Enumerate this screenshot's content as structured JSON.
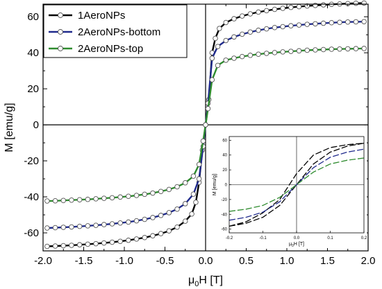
{
  "chart_data": [
    {
      "type": "line",
      "title": "",
      "xlabel": "μ0H [T]",
      "xlabel_parts": {
        "base": "μ",
        "sub": "0",
        "rest": "H [T]"
      },
      "ylabel": "M [emu/g]",
      "xlim": [
        -2.0,
        2.0
      ],
      "ylim": [
        -70,
        67
      ],
      "x_ticks": [
        -2.0,
        -1.5,
        -1.0,
        -0.5,
        0.0,
        0.5,
        1.0,
        1.5,
        2.0
      ],
      "x_tick_labels": [
        "-2.0",
        "-1.5",
        "-1.0",
        "-0.5",
        "0.0",
        "0.5",
        "1.0",
        "1.5",
        "2.0"
      ],
      "y_ticks": [
        -60,
        -40,
        -20,
        0,
        20,
        40,
        60
      ],
      "y_tick_labels": [
        "-60",
        "-40",
        "-20",
        "0",
        "20",
        "40",
        "60"
      ],
      "zero_lines": true,
      "legend_position": "top-left",
      "series": [
        {
          "name": "1AeroNPs",
          "color": "#000000",
          "marker": "open-circle",
          "x": [
            -1.95,
            -1.85,
            -1.75,
            -1.65,
            -1.55,
            -1.45,
            -1.35,
            -1.25,
            -1.15,
            -1.05,
            -0.95,
            -0.85,
            -0.75,
            -0.65,
            -0.55,
            -0.45,
            -0.35,
            -0.25,
            -0.17,
            -0.12,
            -0.08,
            -0.04,
            0.0,
            0.04,
            0.08,
            0.12,
            0.17,
            0.25,
            0.35,
            0.45,
            0.55,
            0.65,
            0.75,
            0.85,
            0.95,
            1.05,
            1.15,
            1.25,
            1.35,
            1.45,
            1.55,
            1.65,
            1.75,
            1.85,
            1.95
          ],
          "y": [
            -67.5,
            -67.3,
            -67.1,
            -66.9,
            -66.6,
            -66.3,
            -66.0,
            -65.6,
            -65.2,
            -64.7,
            -64.1,
            -63.4,
            -62.6,
            -61.6,
            -60.4,
            -58.9,
            -56.8,
            -53.5,
            -49.5,
            -43.0,
            -32.0,
            -14.0,
            0.0,
            14.0,
            40.0,
            48.0,
            53.5,
            56.8,
            58.9,
            60.4,
            61.6,
            62.6,
            63.4,
            64.1,
            64.7,
            65.2,
            65.6,
            66.0,
            66.3,
            66.6,
            66.9,
            67.1,
            67.3,
            67.5,
            67.6
          ]
        },
        {
          "name": "2AeroNPs-bottom",
          "color": "#1f2a8c",
          "marker": "open-circle",
          "x": [
            -1.95,
            -1.85,
            -1.75,
            -1.65,
            -1.55,
            -1.45,
            -1.35,
            -1.25,
            -1.15,
            -1.05,
            -0.95,
            -0.85,
            -0.75,
            -0.65,
            -0.55,
            -0.45,
            -0.35,
            -0.25,
            -0.15,
            -0.08,
            -0.03,
            0.0,
            0.03,
            0.08,
            0.15,
            0.25,
            0.35,
            0.45,
            0.55,
            0.65,
            0.75,
            0.85,
            0.95,
            1.05,
            1.15,
            1.25,
            1.35,
            1.45,
            1.55,
            1.65,
            1.75,
            1.85,
            1.95
          ],
          "y": [
            -57.3,
            -57.1,
            -56.9,
            -56.7,
            -56.4,
            -56.1,
            -55.8,
            -55.4,
            -55.0,
            -54.5,
            -54.0,
            -53.3,
            -52.5,
            -51.5,
            -50.3,
            -48.8,
            -46.8,
            -43.8,
            -38.5,
            -30.0,
            -12.0,
            0.0,
            12.0,
            37.0,
            43.5,
            46.8,
            48.8,
            50.3,
            51.5,
            52.5,
            53.3,
            54.0,
            54.5,
            55.0,
            55.4,
            55.8,
            56.1,
            56.4,
            56.7,
            56.9,
            57.1,
            57.2,
            57.3
          ]
        },
        {
          "name": "2AeroNPs-top",
          "color": "#2e8b2e",
          "marker": "open-circle",
          "x": [
            -1.95,
            -1.85,
            -1.75,
            -1.65,
            -1.55,
            -1.45,
            -1.35,
            -1.25,
            -1.15,
            -1.05,
            -0.95,
            -0.85,
            -0.75,
            -0.65,
            -0.55,
            -0.45,
            -0.35,
            -0.25,
            -0.15,
            -0.08,
            -0.03,
            0.0,
            0.03,
            0.08,
            0.15,
            0.25,
            0.35,
            0.45,
            0.55,
            0.65,
            0.75,
            0.85,
            0.95,
            1.05,
            1.15,
            1.25,
            1.35,
            1.45,
            1.55,
            1.65,
            1.75,
            1.85,
            1.95
          ],
          "y": [
            -42.3,
            -42.2,
            -42.0,
            -41.8,
            -41.6,
            -41.4,
            -41.1,
            -40.8,
            -40.5,
            -40.1,
            -39.7,
            -39.2,
            -38.6,
            -37.9,
            -37.0,
            -35.9,
            -34.4,
            -32.2,
            -28.5,
            -22.0,
            -9.0,
            0.0,
            9.0,
            25.0,
            33.0,
            35.9,
            37.0,
            37.9,
            38.6,
            39.2,
            39.7,
            40.1,
            40.5,
            40.8,
            41.1,
            41.4,
            41.6,
            41.8,
            42.0,
            42.1,
            42.2,
            42.3,
            42.4
          ]
        }
      ]
    },
    {
      "type": "line",
      "title": "",
      "placement": "inset-bottom-right",
      "xlabel": "μ0H [T]",
      "xlabel_parts": {
        "base": "μ",
        "sub": "0",
        "rest": "H [T]"
      },
      "ylabel": "M [emu/g]",
      "xlim": [
        -0.2,
        0.2
      ],
      "ylim": [
        -65,
        65
      ],
      "x_ticks": [
        -0.2,
        -0.1,
        0.0,
        0.1,
        0.2
      ],
      "x_tick_labels": [
        "-0.2",
        "-0.1",
        "0.0",
        "0.1",
        "0.2"
      ],
      "y_ticks": [
        -60,
        -40,
        -20,
        0,
        20,
        40,
        60
      ],
      "y_tick_labels": [
        "-60",
        "-40",
        "-20",
        "0",
        "20",
        "40",
        "60"
      ],
      "zero_lines": true,
      "series": [
        {
          "color": "#000000",
          "dashed": true,
          "x": [
            -0.2,
            -0.15,
            -0.1,
            -0.05,
            0.0,
            0.05,
            0.1,
            0.15,
            0.2,
            0.15,
            0.1,
            0.05,
            0.0,
            -0.05,
            -0.1,
            -0.15,
            -0.2
          ],
          "y": [
            -56,
            -52,
            -44,
            -28,
            0,
            28,
            44,
            52,
            56,
            54,
            50,
            40,
            15,
            -20,
            -38,
            -50,
            -56
          ]
        },
        {
          "color": "#1f2a8c",
          "dashed": true,
          "x": [
            -0.2,
            -0.15,
            -0.1,
            -0.05,
            0.0,
            0.05,
            0.1,
            0.15,
            0.2
          ],
          "y": [
            -48,
            -44,
            -37,
            -23,
            0,
            23,
            37,
            44,
            48
          ]
        },
        {
          "color": "#2e8b2e",
          "dashed": true,
          "x": [
            -0.2,
            -0.15,
            -0.1,
            -0.05,
            0.0,
            0.05,
            0.1,
            0.15,
            0.2
          ],
          "y": [
            -36,
            -33,
            -28,
            -17,
            0,
            17,
            28,
            33,
            36
          ]
        }
      ]
    }
  ]
}
